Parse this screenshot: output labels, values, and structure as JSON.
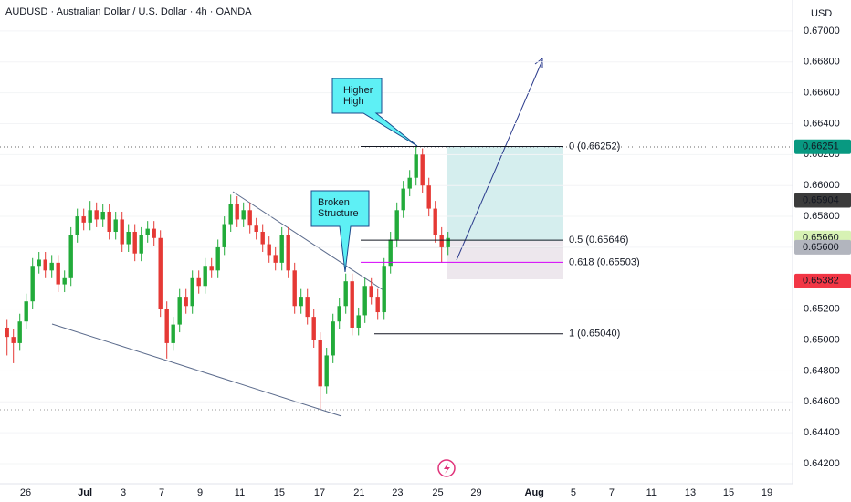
{
  "chart_data": {
    "type": "candlestick",
    "title": "AUDUSD · Australian Dollar / U.S. Dollar · 4h · OANDA",
    "y_unit": "USD",
    "up_color": "#22ab3a",
    "down_color": "#e53935",
    "open": [
      0.6508,
      0.6502,
      0.6498,
      0.6512,
      0.6525,
      0.6548,
      0.6552,
      0.6545,
      0.655,
      0.6536,
      0.654,
      0.6568,
      0.658,
      0.6576,
      0.6584,
      0.6578,
      0.6583,
      0.657,
      0.6578,
      0.6562,
      0.657,
      0.6556,
      0.6568,
      0.6572,
      0.6566,
      0.652,
      0.6498,
      0.651,
      0.6528,
      0.6522,
      0.654,
      0.6535,
      0.6548,
      0.6545,
      0.656,
      0.6575,
      0.6588,
      0.6578,
      0.6584,
      0.6574,
      0.657,
      0.6562,
      0.6555,
      0.655,
      0.6568,
      0.6545,
      0.6522,
      0.6528,
      0.6515,
      0.65,
      0.647,
      0.649,
      0.6512,
      0.6522,
      0.6538,
      0.6508,
      0.6516,
      0.6535,
      0.6528,
      0.6518,
      0.6548,
      0.6565,
      0.6584,
      0.6598,
      0.6605,
      0.662,
      0.66,
      0.6585,
      0.6568,
      0.656
    ],
    "high": [
      0.6513,
      0.6507,
      0.6517,
      0.653,
      0.6553,
      0.6557,
      0.6557,
      0.6555,
      0.6555,
      0.6545,
      0.6573,
      0.6585,
      0.6585,
      0.659,
      0.6589,
      0.6588,
      0.6588,
      0.6583,
      0.6583,
      0.6575,
      0.6575,
      0.6573,
      0.6577,
      0.6577,
      0.6571,
      0.6525,
      0.6515,
      0.6533,
      0.6533,
      0.6545,
      0.6545,
      0.6553,
      0.6553,
      0.6565,
      0.658,
      0.6594,
      0.6593,
      0.6589,
      0.6589,
      0.6579,
      0.6575,
      0.6567,
      0.656,
      0.6573,
      0.6573,
      0.655,
      0.6533,
      0.6533,
      0.652,
      0.6505,
      0.6495,
      0.6517,
      0.6527,
      0.6543,
      0.6543,
      0.6521,
      0.654,
      0.654,
      0.6533,
      0.6553,
      0.657,
      0.6589,
      0.6603,
      0.661,
      0.66252,
      0.6624,
      0.6605,
      0.659,
      0.6573,
      0.657
    ],
    "low": [
      0.649,
      0.6485,
      0.6493,
      0.6507,
      0.652,
      0.6543,
      0.654,
      0.654,
      0.6531,
      0.6531,
      0.6535,
      0.6563,
      0.6571,
      0.6571,
      0.6573,
      0.6573,
      0.6565,
      0.6565,
      0.6557,
      0.6557,
      0.6551,
      0.6551,
      0.6563,
      0.6561,
      0.6515,
      0.6488,
      0.6493,
      0.6505,
      0.6517,
      0.6517,
      0.653,
      0.653,
      0.654,
      0.654,
      0.6555,
      0.657,
      0.6573,
      0.6573,
      0.6569,
      0.6565,
      0.6557,
      0.655,
      0.6545,
      0.6545,
      0.654,
      0.6517,
      0.6517,
      0.651,
      0.6495,
      0.6455,
      0.6465,
      0.6485,
      0.6507,
      0.6517,
      0.6503,
      0.6503,
      0.6511,
      0.6523,
      0.6513,
      0.6513,
      0.6543,
      0.656,
      0.6579,
      0.6593,
      0.66,
      0.6595,
      0.658,
      0.6563,
      0.655,
      0.6555
    ],
    "close": [
      0.6502,
      0.6498,
      0.6512,
      0.6525,
      0.6548,
      0.6552,
      0.6545,
      0.655,
      0.6536,
      0.654,
      0.6568,
      0.658,
      0.6576,
      0.6584,
      0.6578,
      0.6583,
      0.657,
      0.6578,
      0.6562,
      0.657,
      0.6556,
      0.6568,
      0.6572,
      0.6566,
      0.652,
      0.6498,
      0.651,
      0.6528,
      0.6522,
      0.654,
      0.6535,
      0.6548,
      0.6545,
      0.656,
      0.6575,
      0.6588,
      0.6578,
      0.6584,
      0.6574,
      0.657,
      0.6562,
      0.6555,
      0.655,
      0.6568,
      0.6545,
      0.6522,
      0.6528,
      0.6515,
      0.65,
      0.647,
      0.649,
      0.6512,
      0.6522,
      0.6538,
      0.6508,
      0.6516,
      0.6535,
      0.6528,
      0.6518,
      0.6548,
      0.6565,
      0.6584,
      0.6598,
      0.6605,
      0.662,
      0.66,
      0.6585,
      0.6568,
      0.656,
      0.6566
    ],
    "xlim": [
      -1.1,
      122.9
    ],
    "xticks": [
      {
        "value": 2.9,
        "label": "26"
      },
      {
        "value": 12.2,
        "label": "Jul"
      },
      {
        "value": 18.2,
        "label": "3"
      },
      {
        "value": 24.2,
        "label": "7"
      },
      {
        "value": 30.2,
        "label": "9"
      },
      {
        "value": 36.4,
        "label": "11"
      },
      {
        "value": 42.6,
        "label": "15"
      },
      {
        "value": 48.9,
        "label": "17"
      },
      {
        "value": 55.1,
        "label": "21"
      },
      {
        "value": 61.1,
        "label": "23"
      },
      {
        "value": 67.4,
        "label": "25"
      },
      {
        "value": 73.4,
        "label": "29"
      },
      {
        "value": 82.5,
        "label": "Aug"
      },
      {
        "value": 88.6,
        "label": "5"
      },
      {
        "value": 94.6,
        "label": "7"
      },
      {
        "value": 100.8,
        "label": "11"
      },
      {
        "value": 106.9,
        "label": "13"
      },
      {
        "value": 112.9,
        "label": "15"
      },
      {
        "value": 118.9,
        "label": "19"
      }
    ],
    "ylim": [
      0.6407,
      0.672
    ],
    "yticks": [
      {
        "value": 0.67,
        "label": "0.67000"
      },
      {
        "value": 0.668,
        "label": "0.66800"
      },
      {
        "value": 0.666,
        "label": "0.66600"
      },
      {
        "value": 0.664,
        "label": "0.66400"
      },
      {
        "value": 0.662,
        "label": "0.66200"
      },
      {
        "value": 0.66,
        "label": "0.66000"
      },
      {
        "value": 0.658,
        "label": "0.65800"
      },
      {
        "value": 0.656,
        "label": "0.65600"
      },
      {
        "value": 0.652,
        "label": "0.65200"
      },
      {
        "value": 0.65,
        "label": "0.65000"
      },
      {
        "value": 0.648,
        "label": "0.64800"
      },
      {
        "value": 0.646,
        "label": "0.64600"
      },
      {
        "value": 0.644,
        "label": "0.64400"
      },
      {
        "value": 0.642,
        "label": "0.64200"
      }
    ],
    "price_labels": [
      {
        "value": 0.66251,
        "label": "0.66251",
        "color": "#089981"
      },
      {
        "value": 0.65904,
        "label": "0.65904",
        "color": "#3b3b3b"
      },
      {
        "value": 0.6566,
        "label": "0.65660",
        "color": "#d7f2b4"
      },
      {
        "value": 0.656,
        "label": "0.65600",
        "color": "#b2b5be"
      },
      {
        "value": 0.65382,
        "label": "0.65382",
        "color": "#f23645"
      }
    ],
    "fib_levels": [
      {
        "value": 0.66252,
        "label": "0 (0.66252)",
        "color": "#131722"
      },
      {
        "value": 0.65646,
        "label": "0.5 (0.65646)",
        "color": "#131722"
      },
      {
        "value": 0.65503,
        "label": "0.618 (0.65503)",
        "color": "#d500f9"
      },
      {
        "value": 0.6504,
        "label": "1 (0.65040)",
        "color": "#131722"
      }
    ],
    "annotations": [
      [
        "Higher",
        "High"
      ],
      [
        "Broken",
        "Structure"
      ]
    ]
  }
}
